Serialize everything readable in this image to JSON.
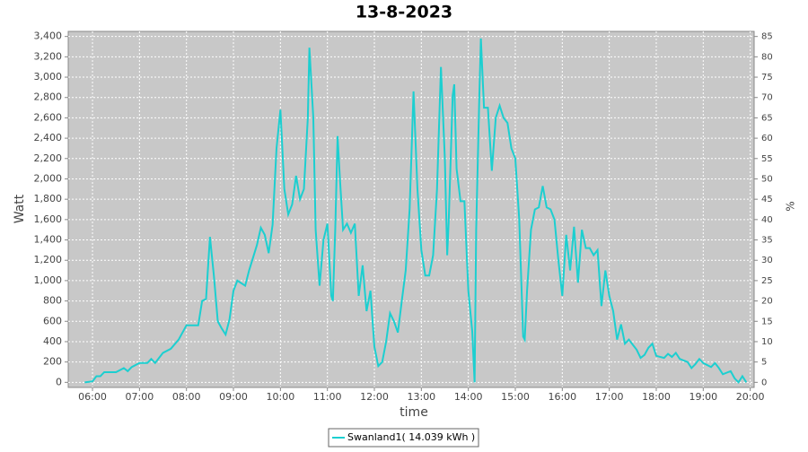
{
  "chart_data": {
    "type": "line",
    "title": "13-8-2023",
    "x_label": "time",
    "y_label": "Watt",
    "y2_label": "%",
    "x": [
      "05:50",
      "06:00",
      "06:05",
      "06:10",
      "06:15",
      "06:30",
      "06:40",
      "06:45",
      "06:50",
      "07:00",
      "07:10",
      "07:15",
      "07:20",
      "07:30",
      "07:40",
      "07:50",
      "08:00",
      "08:10",
      "08:15",
      "08:20",
      "08:25",
      "08:30",
      "08:35",
      "08:40",
      "08:45",
      "08:50",
      "08:55",
      "09:00",
      "09:05",
      "09:15",
      "09:20",
      "09:30",
      "09:35",
      "09:40",
      "09:45",
      "09:50",
      "09:55",
      "10:00",
      "10:05",
      "10:10",
      "10:15",
      "10:20",
      "10:25",
      "10:30",
      "10:35",
      "10:37",
      "10:42",
      "10:45",
      "10:50",
      "10:55",
      "11:00",
      "11:05",
      "11:07",
      "11:10",
      "11:13",
      "11:16",
      "11:20",
      "11:25",
      "11:30",
      "11:35",
      "11:40",
      "11:45",
      "11:50",
      "11:55",
      "12:00",
      "12:05",
      "12:10",
      "12:15",
      "12:20",
      "12:25",
      "12:30",
      "12:35",
      "12:40",
      "12:45",
      "12:50",
      "12:55",
      "13:00",
      "13:05",
      "13:10",
      "13:15",
      "13:20",
      "13:25",
      "13:30",
      "13:33",
      "13:35",
      "13:40",
      "13:42",
      "13:45",
      "13:50",
      "13:55",
      "14:00",
      "14:05",
      "14:08",
      "14:10",
      "14:14",
      "14:16",
      "14:20",
      "14:25",
      "14:30",
      "14:35",
      "14:40",
      "14:45",
      "14:50",
      "14:55",
      "15:00",
      "15:05",
      "15:10",
      "15:12",
      "15:15",
      "15:20",
      "15:25",
      "15:30",
      "15:35",
      "15:40",
      "15:45",
      "15:50",
      "15:55",
      "16:00",
      "16:05",
      "16:10",
      "16:15",
      "16:20",
      "16:25",
      "16:30",
      "16:35",
      "16:40",
      "16:45",
      "16:50",
      "16:55",
      "17:00",
      "17:05",
      "17:10",
      "17:15",
      "17:20",
      "17:25",
      "17:30",
      "17:35",
      "17:40",
      "17:45",
      "17:50",
      "17:55",
      "18:00",
      "18:10",
      "18:15",
      "18:20",
      "18:25",
      "18:30",
      "18:40",
      "18:45",
      "18:50",
      "18:55",
      "19:00",
      "19:10",
      "19:15",
      "19:20",
      "19:25",
      "19:35",
      "19:40",
      "19:45",
      "19:50",
      "19:55"
    ],
    "series": [
      {
        "name": "Swanland1( 14.039 kWh )",
        "color": "#1ccfd0",
        "values": [
          0,
          10,
          60,
          60,
          100,
          100,
          140,
          110,
          150,
          190,
          190,
          230,
          190,
          290,
          330,
          420,
          560,
          560,
          560,
          800,
          820,
          1430,
          1050,
          600,
          530,
          470,
          620,
          900,
          1000,
          950,
          1100,
          1350,
          1520,
          1450,
          1270,
          1550,
          2300,
          2680,
          1900,
          1650,
          1750,
          2030,
          1800,
          1900,
          2600,
          3290,
          2600,
          1500,
          950,
          1400,
          1560,
          850,
          800,
          1500,
          2420,
          2000,
          1500,
          1560,
          1470,
          1560,
          850,
          1150,
          700,
          900,
          350,
          160,
          200,
          400,
          680,
          600,
          490,
          800,
          1100,
          1700,
          2860,
          1900,
          1300,
          1050,
          1050,
          1250,
          1900,
          3100,
          2200,
          1250,
          1600,
          2820,
          2930,
          2100,
          1780,
          1780,
          900,
          500,
          0,
          1500,
          2800,
          3380,
          2700,
          2700,
          2080,
          2600,
          2720,
          2600,
          2550,
          2300,
          2200,
          1600,
          450,
          420,
          900,
          1500,
          1700,
          1720,
          1930,
          1720,
          1700,
          1600,
          1200,
          850,
          1450,
          1100,
          1530,
          980,
          1500,
          1320,
          1320,
          1250,
          1300,
          750,
          1100,
          850,
          700,
          420,
          570,
          380,
          420,
          370,
          320,
          240,
          270,
          340,
          380,
          260,
          240,
          280,
          250,
          290,
          230,
          200,
          140,
          180,
          230,
          190,
          150,
          190,
          140,
          80,
          110,
          40,
          0,
          60,
          0
        ]
      }
    ],
    "xlim": [
      "05:29",
      "20:05"
    ],
    "xticks": [
      "06:00",
      "07:00",
      "08:00",
      "09:00",
      "10:00",
      "11:00",
      "12:00",
      "13:00",
      "14:00",
      "15:00",
      "16:00",
      "17:00",
      "18:00",
      "19:00",
      "20:00"
    ],
    "ylim": [
      -50,
      3450
    ],
    "yticks": [
      0,
      200,
      400,
      600,
      800,
      {
        "value": 1000,
        "label": "1,000"
      },
      {
        "value": 1200,
        "label": "1,200"
      },
      {
        "value": 1400,
        "label": "1,400"
      },
      {
        "value": 1600,
        "label": "1,600"
      },
      {
        "value": 1800,
        "label": "1,800"
      },
      {
        "value": 2000,
        "label": "2,000"
      },
      {
        "value": 2200,
        "label": "2,200"
      },
      {
        "value": 2400,
        "label": "2,400"
      },
      {
        "value": 2600,
        "label": "2,600"
      },
      {
        "value": 2800,
        "label": "2,800"
      },
      {
        "value": 3000,
        "label": "3,000"
      },
      {
        "value": 3200,
        "label": "3,200"
      },
      {
        "value": 3400,
        "label": "3,400"
      }
    ],
    "y2lim": [
      -1.25,
      86.25
    ],
    "y2ticks": [
      0,
      5,
      10,
      15,
      20,
      25,
      30,
      35,
      40,
      45,
      50,
      55,
      60,
      65,
      70,
      75,
      80,
      85
    ],
    "grid": true
  }
}
